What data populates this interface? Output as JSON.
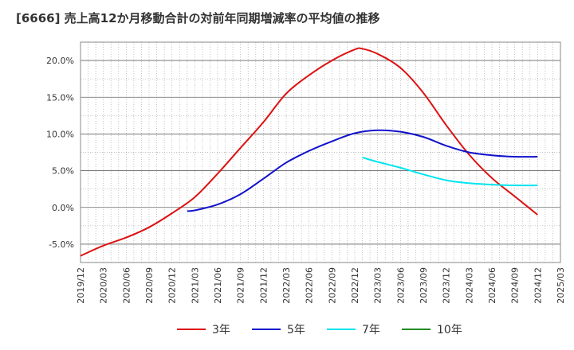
{
  "title": "[6666]  売上高12か月移動合計の対前年同期増減率の平均値の推移",
  "chart_data": {
    "type": "line",
    "title": "[6666]  売上高12か月移動合計の対前年同期増減率の平均値の推移",
    "xlabel": "",
    "ylabel": "",
    "x_ticks": [
      "2019/12",
      "2020/03",
      "2020/06",
      "2020/09",
      "2020/12",
      "2021/03",
      "2021/06",
      "2021/09",
      "2021/12",
      "2022/03",
      "2022/06",
      "2022/09",
      "2022/12",
      "2023/03",
      "2023/06",
      "2023/09",
      "2023/12",
      "2024/03",
      "2024/06",
      "2024/09",
      "2024/12",
      "2025/03"
    ],
    "y_ticks": [
      20.0,
      15.0,
      10.0,
      5.0,
      0.0,
      -5.0
    ],
    "y_tick_labels": [
      "20.0%",
      "15.0%",
      "10.0%",
      "5.0%",
      "0.0%",
      "-5.0%"
    ],
    "ylim": [
      -7.5,
      22.5
    ],
    "grid": true,
    "legend_position": "bottom",
    "series": [
      {
        "name": "3年",
        "color": "#dd1111",
        "points": [
          [
            "2019/12",
            -6.6
          ],
          [
            "2020/03",
            -5.2
          ],
          [
            "2020/06",
            -4.1
          ],
          [
            "2020/09",
            -2.7
          ],
          [
            "2020/12",
            -0.8
          ],
          [
            "2021/03",
            1.4
          ],
          [
            "2021/06",
            4.6
          ],
          [
            "2021/09",
            8.1
          ],
          [
            "2021/12",
            11.6
          ],
          [
            "2022/03",
            15.5
          ],
          [
            "2022/06",
            18.0
          ],
          [
            "2022/09",
            20.0
          ],
          [
            "2022/12",
            21.5
          ],
          [
            "2023/01",
            21.6
          ],
          [
            "2023/03",
            20.9
          ],
          [
            "2023/06",
            19.0
          ],
          [
            "2023/09",
            15.6
          ],
          [
            "2023/12",
            11.2
          ],
          [
            "2024/03",
            7.2
          ],
          [
            "2024/06",
            4.0
          ],
          [
            "2024/09",
            1.5
          ],
          [
            "2024/12",
            -1.0
          ]
        ]
      },
      {
        "name": "5年",
        "color": "#1111cc",
        "points": [
          [
            "2021/02",
            -0.5
          ],
          [
            "2021/03",
            -0.4
          ],
          [
            "2021/06",
            0.4
          ],
          [
            "2021/09",
            1.8
          ],
          [
            "2021/12",
            3.9
          ],
          [
            "2022/03",
            6.1
          ],
          [
            "2022/06",
            7.7
          ],
          [
            "2022/09",
            9.0
          ],
          [
            "2022/12",
            10.1
          ],
          [
            "2023/03",
            10.5
          ],
          [
            "2023/06",
            10.3
          ],
          [
            "2023/09",
            9.6
          ],
          [
            "2023/12",
            8.4
          ],
          [
            "2024/03",
            7.5
          ],
          [
            "2024/06",
            7.1
          ],
          [
            "2024/09",
            6.9
          ],
          [
            "2024/12",
            6.9
          ]
        ]
      },
      {
        "name": "7年",
        "color": "#00e5ee",
        "points": [
          [
            "2023/01",
            6.8
          ],
          [
            "2023/03",
            6.2
          ],
          [
            "2023/06",
            5.4
          ],
          [
            "2023/09",
            4.5
          ],
          [
            "2023/12",
            3.7
          ],
          [
            "2024/03",
            3.3
          ],
          [
            "2024/06",
            3.1
          ],
          [
            "2024/09",
            3.0
          ],
          [
            "2024/12",
            3.0
          ]
        ]
      },
      {
        "name": "10年",
        "color": "#228b22",
        "points": []
      }
    ]
  }
}
